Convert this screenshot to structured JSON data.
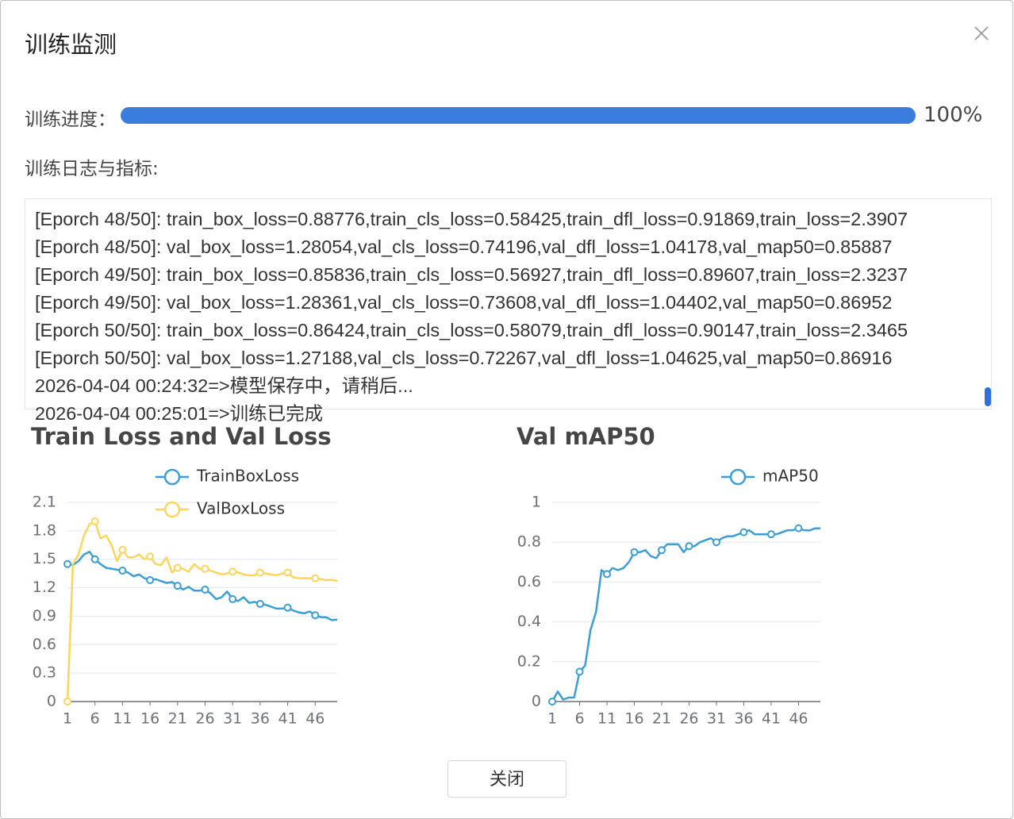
{
  "dialog": {
    "title": "训练监测"
  },
  "progress": {
    "label": "训练进度：",
    "value": 100,
    "value_label": "100%"
  },
  "log": {
    "label": "训练日志与指标:",
    "lines": [
      "[Eporch 48/50]: train_box_loss=0.88776,train_cls_loss=0.58425,train_dfl_loss=0.91869,train_loss=2.3907",
      "[Eporch 48/50]: val_box_loss=1.28054,val_cls_loss=0.74196,val_dfl_loss=1.04178,val_map50=0.85887",
      "[Eporch 49/50]: train_box_loss=0.85836,train_cls_loss=0.56927,train_dfl_loss=0.89607,train_loss=2.3237",
      "[Eporch 49/50]: val_box_loss=1.28361,val_cls_loss=0.73608,val_dfl_loss=1.04402,val_map50=0.86952",
      "[Eporch 50/50]: train_box_loss=0.86424,train_cls_loss=0.58079,train_dfl_loss=0.90147,train_loss=2.3465",
      "[Eporch 50/50]: val_box_loss=1.27188,val_cls_loss=0.72267,val_dfl_loss=1.04625,val_map50=0.86916",
      "2026-04-04 00:24:32=>模型保存中，请稍后...",
      "2026-04-04 00:25:01=>训练已完成"
    ]
  },
  "chart_data": [
    {
      "type": "line",
      "title": "Train Loss and Val Loss",
      "legend": "top",
      "grid": true,
      "categories": [
        1,
        null,
        null,
        null,
        null,
        6,
        null,
        null,
        null,
        null,
        11,
        null,
        null,
        null,
        null,
        16,
        null,
        null,
        null,
        null,
        21,
        null,
        null,
        null,
        null,
        26,
        null,
        null,
        null,
        null,
        31,
        null,
        null,
        null,
        null,
        36,
        null,
        null,
        null,
        null,
        41,
        null,
        null,
        null,
        null,
        46,
        null,
        null,
        null,
        null
      ],
      "ylim": [
        0,
        2.1
      ],
      "yticks": [
        0,
        0.3,
        0.6,
        0.9,
        1.2,
        1.5,
        1.8,
        2.1
      ],
      "series": [
        {
          "name": "TrainBoxLoss",
          "color": "#3a9fd6",
          "values": [
            1.45,
            1.44,
            1.48,
            1.55,
            1.58,
            1.5,
            1.45,
            1.41,
            1.4,
            1.39,
            1.38,
            1.36,
            1.32,
            1.34,
            1.3,
            1.28,
            1.29,
            1.27,
            1.25,
            1.26,
            1.22,
            1.18,
            1.21,
            1.17,
            1.17,
            1.18,
            1.14,
            1.08,
            1.1,
            1.16,
            1.08,
            1.06,
            1.1,
            1.04,
            1.05,
            1.03,
            1.02,
            1.0,
            0.98,
            0.98,
            0.99,
            0.96,
            0.94,
            0.93,
            0.95,
            0.91,
            0.89,
            0.88776,
            0.85836,
            0.86424
          ]
        },
        {
          "name": "ValBoxLoss",
          "color": "#fcd55a",
          "values": [
            0,
            1.45,
            1.55,
            1.75,
            1.87,
            1.9,
            1.72,
            1.75,
            1.65,
            1.48,
            1.6,
            1.52,
            1.52,
            1.55,
            1.5,
            1.53,
            1.45,
            1.44,
            1.52,
            1.36,
            1.41,
            1.4,
            1.37,
            1.45,
            1.4,
            1.4,
            1.38,
            1.36,
            1.34,
            1.35,
            1.37,
            1.36,
            1.34,
            1.33,
            1.33,
            1.36,
            1.35,
            1.34,
            1.33,
            1.35,
            1.36,
            1.31,
            1.3,
            1.3,
            1.3,
            1.3,
            1.29,
            1.28054,
            1.28361,
            1.27188
          ]
        }
      ]
    },
    {
      "type": "line",
      "title": "Val mAP50",
      "legend": "top",
      "grid": true,
      "categories": [
        1,
        null,
        null,
        null,
        null,
        6,
        null,
        null,
        null,
        null,
        11,
        null,
        null,
        null,
        null,
        16,
        null,
        null,
        null,
        null,
        21,
        null,
        null,
        null,
        null,
        26,
        null,
        null,
        null,
        null,
        31,
        null,
        null,
        null,
        null,
        36,
        null,
        null,
        null,
        null,
        41,
        null,
        null,
        null,
        null,
        46,
        null,
        null,
        null,
        null
      ],
      "ylim": [
        0,
        1
      ],
      "yticks": [
        0,
        0.2,
        0.4,
        0.6,
        0.8,
        1
      ],
      "series": [
        {
          "name": "mAP50",
          "color": "#3a9fd6",
          "values": [
            0,
            0.05,
            0.01,
            0.02,
            0.02,
            0.15,
            0.18,
            0.36,
            0.45,
            0.66,
            0.64,
            0.67,
            0.66,
            0.67,
            0.7,
            0.75,
            0.75,
            0.76,
            0.73,
            0.72,
            0.76,
            0.79,
            0.79,
            0.79,
            0.75,
            0.78,
            0.78,
            0.8,
            0.81,
            0.82,
            0.8,
            0.82,
            0.83,
            0.83,
            0.84,
            0.85,
            0.86,
            0.84,
            0.84,
            0.84,
            0.84,
            0.84,
            0.85,
            0.86,
            0.86,
            0.87,
            0.86,
            0.85887,
            0.86952,
            0.86916
          ]
        }
      ]
    }
  ],
  "buttons": {
    "close": "关闭"
  }
}
